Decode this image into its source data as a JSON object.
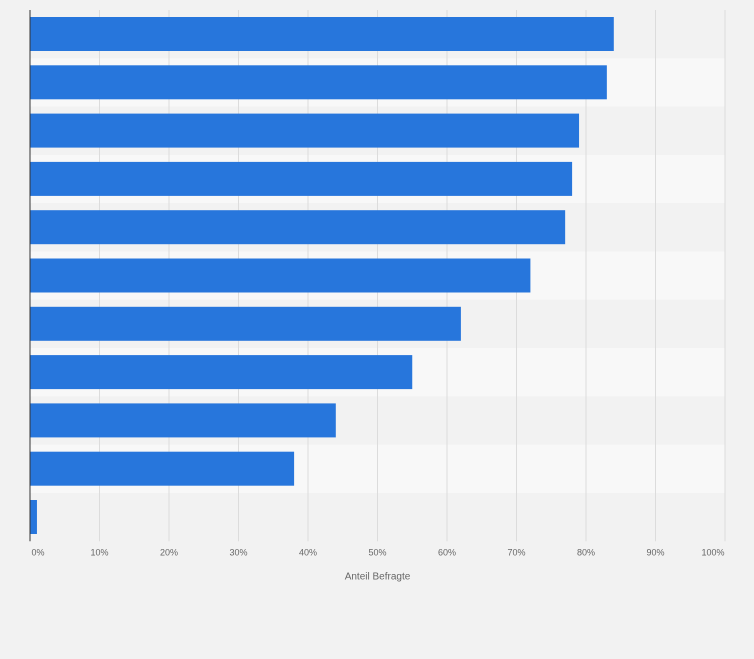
{
  "chart_data": {
    "type": "bar",
    "orientation": "horizontal",
    "title": "",
    "xlabel": "Anteil Befragte",
    "ylabel": "",
    "categories": [
      "",
      "",
      "",
      "",
      "",
      "",
      "",
      "",
      "",
      "",
      ""
    ],
    "values": [
      84,
      83,
      79,
      78,
      77,
      72,
      62,
      55,
      44,
      38,
      1
    ],
    "xlim": [
      0,
      100
    ],
    "x_ticks": [
      "0%",
      "10%",
      "20%",
      "30%",
      "40%",
      "50%",
      "60%",
      "70%",
      "80%",
      "90%",
      "100%"
    ],
    "grid": true,
    "legend": "none",
    "bar_color": "#2776dc",
    "background_color": "#f2f2f2",
    "band_light_color": "#f8f8f8",
    "band_dark_color": "#f2f2f2"
  }
}
